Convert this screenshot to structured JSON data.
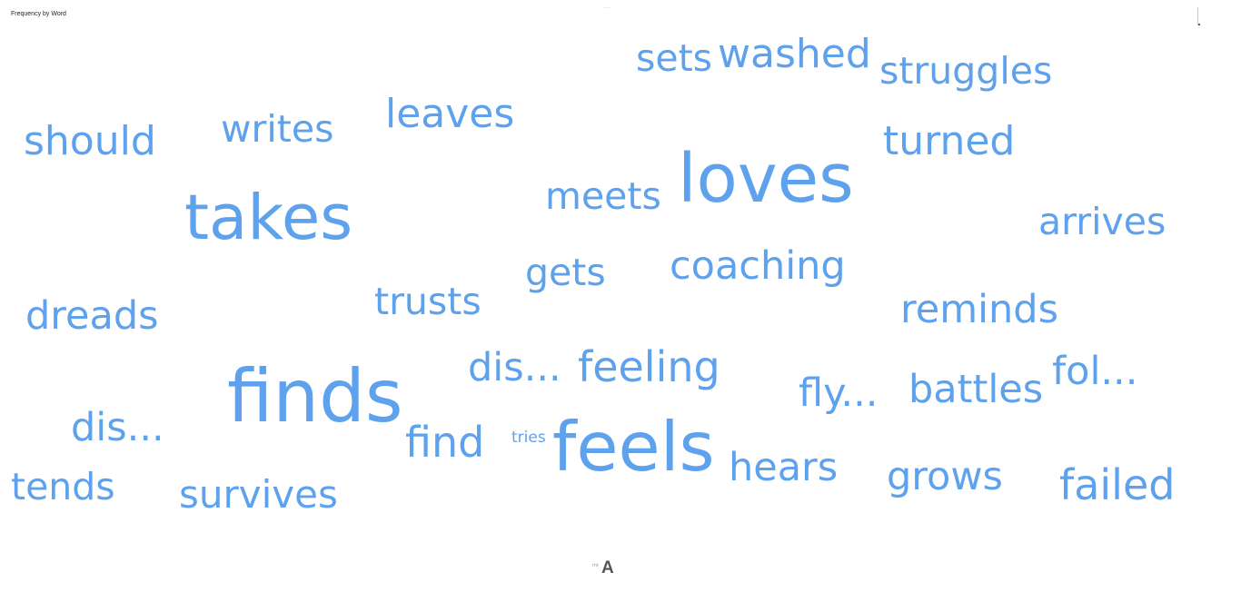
{
  "header": {
    "title": "Frequency by Word"
  },
  "footer": {
    "logo_prefix": "mt",
    "logo_mark": "A",
    "logo_tagline": "..."
  },
  "colors": {
    "word": "#5ea1ec",
    "title": "#252423"
  },
  "chart_data": {
    "type": "wordcloud",
    "title": "Frequency by Word",
    "words": [
      {
        "text": "sets",
        "weight": 3
      },
      {
        "text": "washed",
        "weight": 3
      },
      {
        "text": "struggles",
        "weight": 3
      },
      {
        "text": "leaves",
        "weight": 3
      },
      {
        "text": "should",
        "weight": 3
      },
      {
        "text": "writes",
        "weight": 3
      },
      {
        "text": "turned",
        "weight": 3
      },
      {
        "text": "loves",
        "weight": 5
      },
      {
        "text": "takes",
        "weight": 5
      },
      {
        "text": "meets",
        "weight": 3
      },
      {
        "text": "arrives",
        "weight": 3
      },
      {
        "text": "coaching",
        "weight": 3
      },
      {
        "text": "gets",
        "weight": 3
      },
      {
        "text": "trusts",
        "weight": 3
      },
      {
        "text": "dreads",
        "weight": 3
      },
      {
        "text": "reminds",
        "weight": 3
      },
      {
        "text": "dis...",
        "weight": 3
      },
      {
        "text": "feeling",
        "weight": 3
      },
      {
        "text": "finds",
        "weight": 5
      },
      {
        "text": "fol...",
        "weight": 3
      },
      {
        "text": "fly...",
        "weight": 3
      },
      {
        "text": "battles",
        "weight": 3
      },
      {
        "text": "dis...",
        "weight": 3
      },
      {
        "text": "find",
        "weight": 3
      },
      {
        "text": "tries",
        "weight": 1
      },
      {
        "text": "feels",
        "weight": 5
      },
      {
        "text": "hears",
        "weight": 3
      },
      {
        "text": "grows",
        "weight": 3
      },
      {
        "text": "failed",
        "weight": 3
      },
      {
        "text": "tends",
        "weight": 3
      },
      {
        "text": "survives",
        "weight": 3
      }
    ]
  }
}
